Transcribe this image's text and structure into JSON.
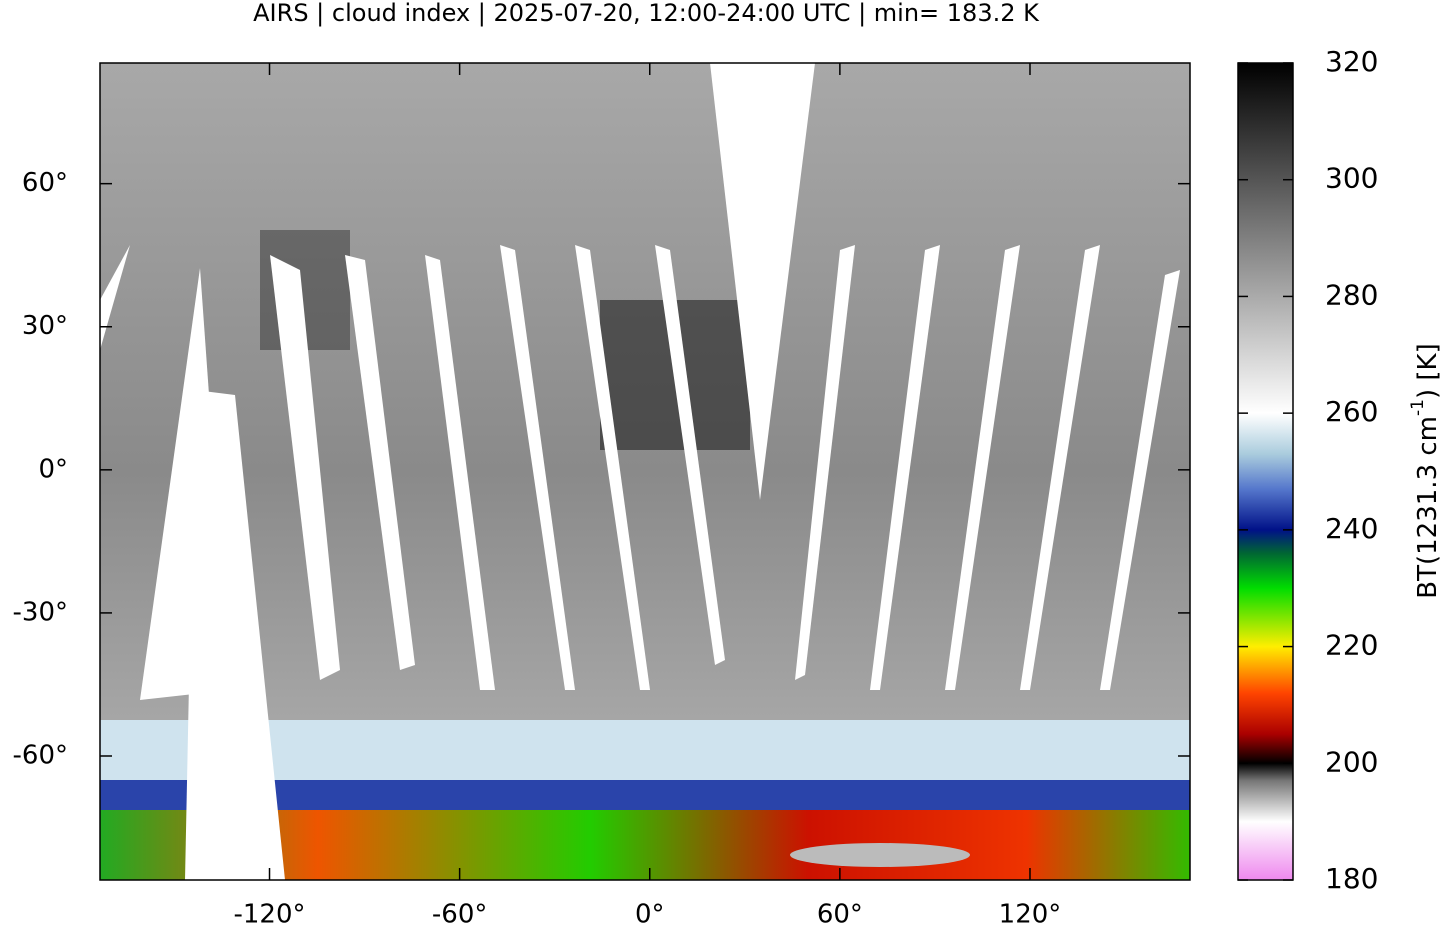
{
  "title": "AIRS | cloud index | 2025-07-20, 12:00-24:00 UTC | min= 183.2 K",
  "map": {
    "xlim": [
      -173.5,
      170.5
    ],
    "ylim": [
      -86,
      85.3
    ],
    "xticks": [
      {
        "value": -120,
        "label": "-120°"
      },
      {
        "value": -60,
        "label": "-60°"
      },
      {
        "value": 0,
        "label": "0°"
      },
      {
        "value": 60,
        "label": "60°"
      },
      {
        "value": 120,
        "label": "120°"
      }
    ],
    "yticks": [
      {
        "value": 60,
        "label": "60°"
      },
      {
        "value": 30,
        "label": "30°"
      },
      {
        "value": 0,
        "label": "0°"
      },
      {
        "value": -30,
        "label": "-30°"
      },
      {
        "value": -60,
        "label": "-60°"
      }
    ]
  },
  "colorbar": {
    "label": [
      "BT(1231.3 cm",
      "-1",
      ") [K]"
    ],
    "lim": [
      180,
      320
    ],
    "ticks": [
      180,
      200,
      220,
      240,
      260,
      280,
      300,
      320
    ],
    "colormap": [
      {
        "value": 180,
        "color": "#ee88ee"
      },
      {
        "value": 190,
        "color": "#ffffff"
      },
      {
        "value": 197,
        "color": "#777777"
      },
      {
        "value": 200,
        "color": "#000000"
      },
      {
        "value": 205,
        "color": "#aa0000"
      },
      {
        "value": 212,
        "color": "#ff4400"
      },
      {
        "value": 220,
        "color": "#ffee00"
      },
      {
        "value": 230,
        "color": "#00dd00"
      },
      {
        "value": 236,
        "color": "#006633"
      },
      {
        "value": 240,
        "color": "#001188"
      },
      {
        "value": 247,
        "color": "#5577cc"
      },
      {
        "value": 253,
        "color": "#aaccdd"
      },
      {
        "value": 260,
        "color": "#ffffff"
      },
      {
        "value": 280,
        "color": "#aaaaaa"
      },
      {
        "value": 300,
        "color": "#555555"
      },
      {
        "value": 320,
        "color": "#000000"
      }
    ]
  }
}
